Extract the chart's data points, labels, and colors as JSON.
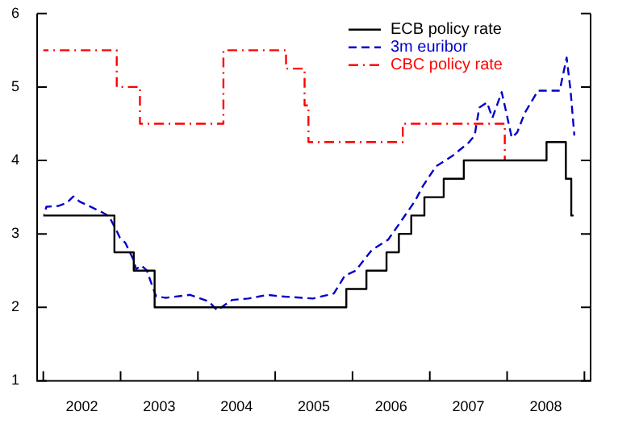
{
  "chart_data": {
    "type": "step",
    "xlim": [
      2001.92,
      2009.08
    ],
    "xticks": [
      {
        "value": 2002,
        "label": null
      },
      {
        "value": 2002.5,
        "label": "2002"
      },
      {
        "value": 2003,
        "label": null
      },
      {
        "value": 2003.5,
        "label": "2003"
      },
      {
        "value": 2004,
        "label": null
      },
      {
        "value": 2004.5,
        "label": "2004"
      },
      {
        "value": 2005,
        "label": null
      },
      {
        "value": 2005.5,
        "label": "2005"
      },
      {
        "value": 2006,
        "label": null
      },
      {
        "value": 2006.5,
        "label": "2006"
      },
      {
        "value": 2007,
        "label": null
      },
      {
        "value": 2007.5,
        "label": "2007"
      },
      {
        "value": 2008,
        "label": null
      },
      {
        "value": 2008.5,
        "label": "2008"
      },
      {
        "value": 2009,
        "label": null
      }
    ],
    "ylim": [
      1,
      6
    ],
    "yticks": [
      1,
      2,
      3,
      4,
      5,
      6
    ],
    "grid": false,
    "legend": "top right",
    "series": [
      {
        "name": "ECB policy rate",
        "color": "#000000",
        "line_style": "solid",
        "x": [
          2002.0,
          2002.92,
          2003.17,
          2003.44,
          2005.92,
          2006.18,
          2006.44,
          2006.6,
          2006.76,
          2006.93,
          2007.18,
          2007.44,
          2008.51,
          2008.76,
          2008.83,
          2008.86
        ],
        "values": [
          3.25,
          2.75,
          2.5,
          2.0,
          2.25,
          2.5,
          2.75,
          3.0,
          3.25,
          3.5,
          3.75,
          4.0,
          4.25,
          3.75,
          3.25,
          3.25
        ]
      },
      {
        "name": "3m euribor",
        "type": "line",
        "color": "#0000cc",
        "line_style": "dashed",
        "x": [
          2002.01,
          2002.04,
          2002.19,
          2002.3,
          2002.39,
          2002.47,
          2002.61,
          2002.75,
          2002.85,
          2002.89,
          2002.94,
          2002.99,
          2003.06,
          2003.17,
          2003.2,
          2003.27,
          2003.34,
          2003.41,
          2003.46,
          2003.58,
          2003.9,
          2004.14,
          2004.25,
          2004.44,
          2004.65,
          2004.9,
          2005.07,
          2005.49,
          2005.76,
          2005.9,
          2006.04,
          2006.25,
          2006.46,
          2006.6,
          2006.81,
          2006.91,
          2007.08,
          2007.29,
          2007.5,
          2007.58,
          2007.64,
          2007.74,
          2007.81,
          2007.93,
          2007.99,
          2008.06,
          2008.13,
          2008.23,
          2008.4,
          2008.68,
          2008.77,
          2008.82,
          2008.87
        ],
        "values": [
          3.26,
          3.37,
          3.38,
          3.42,
          3.51,
          3.44,
          3.37,
          3.3,
          3.24,
          3.16,
          3.06,
          2.95,
          2.88,
          2.64,
          2.52,
          2.57,
          2.5,
          2.29,
          2.15,
          2.13,
          2.17,
          2.08,
          1.96,
          2.1,
          2.12,
          2.17,
          2.15,
          2.12,
          2.19,
          2.43,
          2.5,
          2.78,
          2.92,
          3.13,
          3.45,
          3.65,
          3.92,
          4.06,
          4.24,
          4.34,
          4.72,
          4.79,
          4.58,
          4.93,
          4.65,
          4.31,
          4.38,
          4.65,
          4.95,
          4.95,
          5.4,
          4.96,
          4.34
        ]
      },
      {
        "name": "CBC policy rate",
        "color": "#ff0000",
        "line_style": "dashdot",
        "x": [
          2002.0,
          2002.95,
          2003.25,
          2004.33,
          2005.14,
          2005.38,
          2005.43,
          2006.65,
          2007.97
        ],
        "values": [
          5.5,
          5.0,
          4.5,
          5.5,
          5.25,
          4.75,
          4.25,
          4.5,
          4.0
        ]
      }
    ]
  }
}
